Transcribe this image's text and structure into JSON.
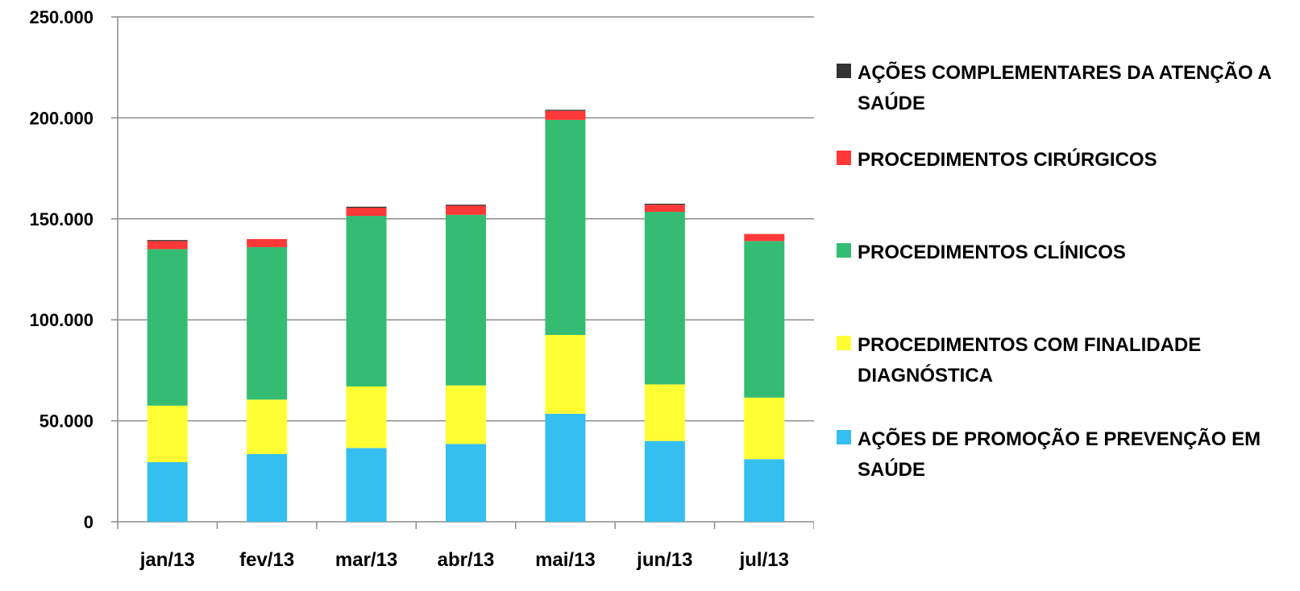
{
  "chart_data": {
    "type": "bar",
    "stacked": true,
    "categories": [
      "jan/13",
      "fev/13",
      "mar/13",
      "abr/13",
      "mai/13",
      "jun/13",
      "jul/13"
    ],
    "ylim": [
      0,
      250000
    ],
    "yticks": [
      0,
      50000,
      100000,
      150000,
      200000,
      250000
    ],
    "ytick_labels": [
      "0",
      "50.000",
      "100.000",
      "150.000",
      "200.000",
      "250.000"
    ],
    "grid": true,
    "legend_position": "right",
    "title": "",
    "xlabel": "",
    "ylabel": "",
    "series": [
      {
        "name": "AÇÕES DE PROMOÇÃO E PREVENÇÃO EM SAÚDE",
        "color": "#35bef0",
        "values": [
          29500,
          33500,
          36500,
          38500,
          53500,
          40000,
          31000
        ]
      },
      {
        "name": "PROCEDIMENTOS COM FINALIDADE DIAGNÓSTICA",
        "color": "#ffff33",
        "values": [
          28000,
          27000,
          30500,
          29000,
          39000,
          28000,
          30500
        ]
      },
      {
        "name": "PROCEDIMENTOS CLÍNICOS",
        "color": "#34bd72",
        "values": [
          77500,
          75500,
          84500,
          84500,
          106500,
          85500,
          77500
        ]
      },
      {
        "name": "PROCEDIMENTOS CIRÚRGICOS",
        "color": "#ff3838",
        "values": [
          4000,
          4000,
          4000,
          4500,
          4500,
          3500,
          3500
        ]
      },
      {
        "name": "AÇÕES COMPLEMENTARES DA ATENÇÃO A SAÚDE",
        "color": "#333333",
        "values": [
          500,
          0,
          500,
          500,
          500,
          500,
          0
        ]
      }
    ]
  }
}
